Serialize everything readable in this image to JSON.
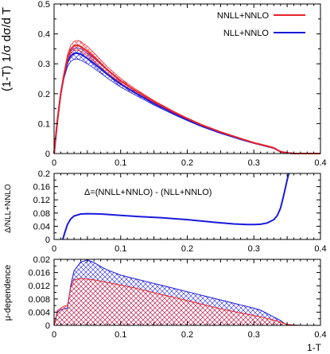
{
  "chart_data": [
    {
      "type": "line",
      "xlim": [
        0,
        0.4
      ],
      "ylim": [
        0,
        0.5
      ],
      "yticks": [
        "0",
        "0.1",
        "0.2",
        "0.3",
        "0.4",
        "0.5"
      ],
      "xticks": [
        "0",
        "0.1",
        "0.2",
        "0.3",
        "0.4"
      ],
      "ylabel": "(1-T) 1/σ dσ/d T",
      "legend": "top-right",
      "series": [
        {
          "name": "NNLL+NNLO",
          "color": "#e8232a",
          "band": "hatched",
          "x": [
            0.0,
            0.005,
            0.01,
            0.015,
            0.02,
            0.025,
            0.03,
            0.035,
            0.04,
            0.05,
            0.06,
            0.08,
            0.1,
            0.12,
            0.15,
            0.18,
            0.2,
            0.22,
            0.25,
            0.28,
            0.3,
            0.32,
            0.33,
            0.335,
            0.34,
            0.35,
            0.36,
            0.38,
            0.4
          ],
          "central": [
            0.0,
            0.11,
            0.2,
            0.265,
            0.318,
            0.348,
            0.36,
            0.362,
            0.358,
            0.342,
            0.322,
            0.28,
            0.243,
            0.213,
            0.173,
            0.138,
            0.117,
            0.097,
            0.072,
            0.05,
            0.036,
            0.025,
            0.019,
            0.012,
            0.006,
            0.002,
            0.0,
            0.0,
            0.0
          ],
          "upper": [
            0.0,
            0.112,
            0.205,
            0.272,
            0.33,
            0.362,
            0.375,
            0.378,
            0.375,
            0.358,
            0.336,
            0.29,
            0.251,
            0.219,
            0.177,
            0.141,
            0.119,
            0.099,
            0.073,
            0.051,
            0.037,
            0.026,
            0.02,
            0.013,
            0.007,
            0.003,
            0.0,
            0.0,
            0.0
          ],
          "lower": [
            0.0,
            0.108,
            0.195,
            0.258,
            0.306,
            0.334,
            0.345,
            0.346,
            0.342,
            0.326,
            0.308,
            0.27,
            0.235,
            0.207,
            0.169,
            0.135,
            0.115,
            0.095,
            0.071,
            0.049,
            0.035,
            0.024,
            0.018,
            0.011,
            0.005,
            0.001,
            0.0,
            0.0,
            0.0
          ]
        },
        {
          "name": "NLL+NNLO",
          "color": "#1a1adb",
          "band": "hatched",
          "x": [
            0.0,
            0.005,
            0.01,
            0.015,
            0.02,
            0.025,
            0.03,
            0.035,
            0.04,
            0.05,
            0.06,
            0.08,
            0.1,
            0.12,
            0.15,
            0.18,
            0.2,
            0.22,
            0.25,
            0.28,
            0.3,
            0.32,
            0.33,
            0.335,
            0.34,
            0.35,
            0.36,
            0.38,
            0.4
          ],
          "central": [
            0.0,
            0.11,
            0.2,
            0.262,
            0.305,
            0.326,
            0.335,
            0.336,
            0.332,
            0.318,
            0.301,
            0.265,
            0.232,
            0.205,
            0.167,
            0.134,
            0.113,
            0.094,
            0.069,
            0.048,
            0.035,
            0.024,
            0.018,
            0.012,
            0.006,
            0.002,
            0.0,
            0.0,
            0.0
          ],
          "upper": [
            0.0,
            0.111,
            0.204,
            0.27,
            0.318,
            0.342,
            0.352,
            0.354,
            0.35,
            0.335,
            0.318,
            0.278,
            0.242,
            0.212,
            0.172,
            0.138,
            0.116,
            0.096,
            0.07,
            0.049,
            0.036,
            0.025,
            0.019,
            0.013,
            0.007,
            0.003,
            0.0,
            0.0,
            0.0
          ],
          "lower": [
            0.0,
            0.108,
            0.195,
            0.252,
            0.29,
            0.308,
            0.315,
            0.316,
            0.312,
            0.3,
            0.285,
            0.252,
            0.222,
            0.198,
            0.162,
            0.13,
            0.11,
            0.091,
            0.067,
            0.047,
            0.034,
            0.023,
            0.017,
            0.011,
            0.005,
            0.001,
            0.0,
            0.0,
            0.0
          ]
        }
      ]
    },
    {
      "type": "line",
      "xlim": [
        0,
        0.4
      ],
      "ylim": [
        0,
        0.2
      ],
      "yticks": [
        "0",
        "0.04",
        "0.08",
        "0.12",
        "0.16",
        "0.2"
      ],
      "xticks": [
        "0",
        "0.1",
        "0.2",
        "0.3",
        "0.4"
      ],
      "ylabel": "Δ/NLL+NNLO",
      "annotation": "Δ=(NNLL+NNLO) - (NLL+NNLO)",
      "series": [
        {
          "color": "#1a1adb",
          "x": [
            0.013,
            0.016,
            0.02,
            0.025,
            0.03,
            0.04,
            0.05,
            0.07,
            0.1,
            0.13,
            0.16,
            0.2,
            0.24,
            0.27,
            0.29,
            0.3,
            0.31,
            0.32,
            0.33,
            0.335,
            0.34,
            0.345,
            0.35,
            0.355
          ],
          "y": [
            0.0,
            0.02,
            0.045,
            0.062,
            0.071,
            0.077,
            0.078,
            0.077,
            0.073,
            0.069,
            0.066,
            0.06,
            0.052,
            0.047,
            0.045,
            0.045,
            0.046,
            0.05,
            0.06,
            0.072,
            0.095,
            0.135,
            0.18,
            0.22
          ]
        }
      ]
    },
    {
      "type": "area",
      "xlim": [
        0,
        0.4
      ],
      "ylim": [
        0,
        0.02
      ],
      "yticks": [
        "0",
        "0.004",
        "0.008",
        "0.012",
        "0.016",
        "0.02"
      ],
      "xticks": [
        "0",
        "0.1",
        "0.2",
        "0.3",
        "0.4"
      ],
      "xlabel": "1-T",
      "ylabel": "μ-dependence",
      "series": [
        {
          "color": "#1a1adb",
          "x": [
            0.0,
            0.005,
            0.01,
            0.015,
            0.02,
            0.025,
            0.03,
            0.04,
            0.05,
            0.06,
            0.07,
            0.08,
            0.1,
            0.12,
            0.14,
            0.16,
            0.18,
            0.2,
            0.22,
            0.24,
            0.26,
            0.28,
            0.3,
            0.31,
            0.32,
            0.33,
            0.34,
            0.345,
            0.35,
            0.36,
            0.37,
            0.38
          ],
          "y": [
            0.0,
            0.004,
            0.0048,
            0.005,
            0.0052,
            0.012,
            0.0165,
            0.0192,
            0.0198,
            0.019,
            0.0178,
            0.0168,
            0.0152,
            0.0142,
            0.0132,
            0.0122,
            0.0112,
            0.0102,
            0.0092,
            0.0082,
            0.0072,
            0.0062,
            0.0052,
            0.0046,
            0.0036,
            0.0025,
            0.0015,
            0.0007,
            0.0003,
            0.0001,
            0.0,
            0.0
          ]
        },
        {
          "color": "#e8232a",
          "x": [
            0.0,
            0.005,
            0.01,
            0.015,
            0.02,
            0.025,
            0.03,
            0.04,
            0.05,
            0.06,
            0.07,
            0.08,
            0.1,
            0.12,
            0.14,
            0.16,
            0.18,
            0.2,
            0.22,
            0.24,
            0.26,
            0.28,
            0.3,
            0.31,
            0.32,
            0.33,
            0.34,
            0.345,
            0.35,
            0.36,
            0.37,
            0.38
          ],
          "y": [
            0.0,
            0.0045,
            0.0052,
            0.0058,
            0.006,
            0.0115,
            0.0138,
            0.0142,
            0.014,
            0.0138,
            0.0134,
            0.013,
            0.0122,
            0.0114,
            0.0104,
            0.0094,
            0.0085,
            0.0075,
            0.0065,
            0.0055,
            0.0046,
            0.0038,
            0.003,
            0.0026,
            0.0021,
            0.0016,
            0.001,
            0.0006,
            0.0003,
            0.0001,
            0.0,
            0.0
          ]
        }
      ]
    }
  ]
}
